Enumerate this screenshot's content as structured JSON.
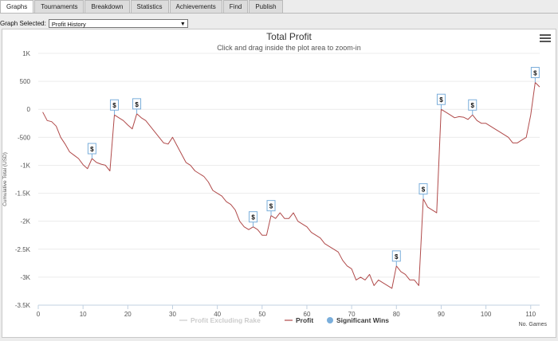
{
  "tabs": [
    {
      "label": "Graphs",
      "active": true
    },
    {
      "label": "Tournaments",
      "active": false
    },
    {
      "label": "Breakdown",
      "active": false
    },
    {
      "label": "Statistics",
      "active": false
    },
    {
      "label": "Achievements",
      "active": false
    },
    {
      "label": "Find",
      "active": false
    },
    {
      "label": "Publish",
      "active": false
    }
  ],
  "graph_select": {
    "label": "Graph Selected:",
    "value": "Profit History"
  },
  "chart": {
    "menu_icon": "hamburger-menu-icon"
  },
  "chart_data": {
    "type": "line",
    "title": "Total Profit",
    "subtitle": "Click and drag inside the plot area to zoom-in",
    "ylabel": "Cumulative Total (USD)",
    "xlabel": "No. Games",
    "xlim": [
      0,
      112
    ],
    "ylim": [
      -3500,
      1000
    ],
    "xticks": [
      0,
      10,
      20,
      30,
      40,
      50,
      60,
      70,
      80,
      90,
      100,
      110
    ],
    "yticks": [
      1000,
      500,
      0,
      -500,
      -1000,
      -1500,
      -2000,
      -2500,
      -3000,
      -3500
    ],
    "ytick_labels": [
      "1K",
      "500",
      "0",
      "-500",
      "-1K",
      "-1.5K",
      "-2K",
      "-2.5K",
      "-3K",
      "-3.5K"
    ],
    "grid": true,
    "legend": [
      {
        "name": "Profit Excluding Rake",
        "color": "#cccccc",
        "enabled": false
      },
      {
        "name": "Profit",
        "color": "#b04a4a",
        "enabled": true
      },
      {
        "name": "Significant Wins",
        "color": "#7aaedb",
        "enabled": true
      }
    ],
    "series": [
      {
        "name": "Profit",
        "color": "#b04a4a",
        "points": [
          [
            1,
            -50
          ],
          [
            2,
            -200
          ],
          [
            3,
            -220
          ],
          [
            4,
            -300
          ],
          [
            5,
            -500
          ],
          [
            6,
            -620
          ],
          [
            7,
            -760
          ],
          [
            8,
            -820
          ],
          [
            9,
            -880
          ],
          [
            10,
            -990
          ],
          [
            11,
            -1060
          ],
          [
            12,
            -880
          ],
          [
            13,
            -950
          ],
          [
            14,
            -980
          ],
          [
            15,
            -1000
          ],
          [
            16,
            -1100
          ],
          [
            17,
            -100
          ],
          [
            18,
            -150
          ],
          [
            19,
            -200
          ],
          [
            20,
            -280
          ],
          [
            21,
            -350
          ],
          [
            22,
            -80
          ],
          [
            23,
            -150
          ],
          [
            24,
            -200
          ],
          [
            25,
            -300
          ],
          [
            26,
            -400
          ],
          [
            27,
            -500
          ],
          [
            28,
            -600
          ],
          [
            29,
            -620
          ],
          [
            30,
            -500
          ],
          [
            31,
            -650
          ],
          [
            32,
            -800
          ],
          [
            33,
            -950
          ],
          [
            34,
            -1000
          ],
          [
            35,
            -1100
          ],
          [
            36,
            -1150
          ],
          [
            37,
            -1200
          ],
          [
            38,
            -1300
          ],
          [
            39,
            -1450
          ],
          [
            40,
            -1500
          ],
          [
            41,
            -1550
          ],
          [
            42,
            -1650
          ],
          [
            43,
            -1700
          ],
          [
            44,
            -1800
          ],
          [
            45,
            -2000
          ],
          [
            46,
            -2100
          ],
          [
            47,
            -2150
          ],
          [
            48,
            -2100
          ],
          [
            49,
            -2150
          ],
          [
            50,
            -2250
          ],
          [
            51,
            -2250
          ],
          [
            52,
            -1900
          ],
          [
            53,
            -1950
          ],
          [
            54,
            -1850
          ],
          [
            55,
            -1950
          ],
          [
            56,
            -1950
          ],
          [
            57,
            -1850
          ],
          [
            58,
            -2000
          ],
          [
            59,
            -2050
          ],
          [
            60,
            -2100
          ],
          [
            61,
            -2200
          ],
          [
            62,
            -2250
          ],
          [
            63,
            -2300
          ],
          [
            64,
            -2400
          ],
          [
            65,
            -2450
          ],
          [
            66,
            -2500
          ],
          [
            67,
            -2550
          ],
          [
            68,
            -2700
          ],
          [
            69,
            -2800
          ],
          [
            70,
            -2850
          ],
          [
            71,
            -3050
          ],
          [
            72,
            -3000
          ],
          [
            73,
            -3050
          ],
          [
            74,
            -2950
          ],
          [
            75,
            -3150
          ],
          [
            76,
            -3050
          ],
          [
            77,
            -3100
          ],
          [
            78,
            -3150
          ],
          [
            79,
            -3200
          ],
          [
            80,
            -2800
          ],
          [
            81,
            -2900
          ],
          [
            82,
            -2950
          ],
          [
            83,
            -3050
          ],
          [
            84,
            -3050
          ],
          [
            85,
            -3150
          ],
          [
            86,
            -1600
          ],
          [
            87,
            -1750
          ],
          [
            88,
            -1800
          ],
          [
            89,
            -1850
          ],
          [
            90,
            0
          ],
          [
            91,
            -50
          ],
          [
            92,
            -100
          ],
          [
            93,
            -150
          ],
          [
            94,
            -130
          ],
          [
            95,
            -140
          ],
          [
            96,
            -180
          ],
          [
            97,
            -100
          ],
          [
            98,
            -200
          ],
          [
            99,
            -250
          ],
          [
            100,
            -250
          ],
          [
            101,
            -300
          ],
          [
            102,
            -350
          ],
          [
            103,
            -400
          ],
          [
            104,
            -450
          ],
          [
            105,
            -500
          ],
          [
            106,
            -600
          ],
          [
            107,
            -600
          ],
          [
            108,
            -550
          ],
          [
            109,
            -500
          ],
          [
            110,
            -100
          ],
          [
            111,
            480
          ],
          [
            112,
            400
          ]
        ]
      }
    ],
    "significant_wins": [
      {
        "x": 12,
        "y": -880,
        "label": "$"
      },
      {
        "x": 17,
        "y": -100,
        "label": "$"
      },
      {
        "x": 22,
        "y": -80,
        "label": "$"
      },
      {
        "x": 48,
        "y": -2100,
        "label": "$"
      },
      {
        "x": 52,
        "y": -1900,
        "label": "$"
      },
      {
        "x": 80,
        "y": -2800,
        "label": "$"
      },
      {
        "x": 86,
        "y": -1600,
        "label": "$"
      },
      {
        "x": 90,
        "y": 0,
        "label": "$"
      },
      {
        "x": 97,
        "y": -100,
        "label": "$"
      },
      {
        "x": 111,
        "y": 480,
        "label": "$"
      }
    ]
  }
}
